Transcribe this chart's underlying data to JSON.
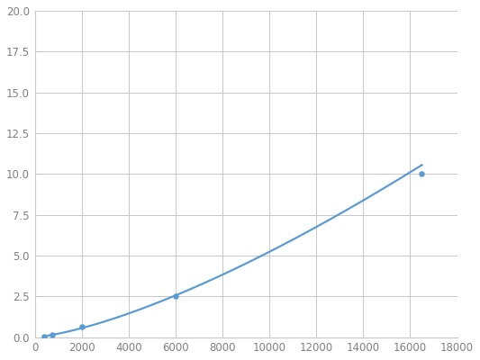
{
  "x_data": [
    400,
    750,
    2000,
    6000,
    16500
  ],
  "y_data": [
    0.05,
    0.15,
    0.62,
    2.5,
    10.0
  ],
  "line_color": "#5b9bd5",
  "marker_color": "#5b9bd5",
  "xlim": [
    0,
    18000
  ],
  "ylim": [
    0,
    20
  ],
  "xticks": [
    0,
    2000,
    4000,
    6000,
    8000,
    10000,
    12000,
    14000,
    16000,
    18000
  ],
  "yticks": [
    0.0,
    2.5,
    5.0,
    7.5,
    10.0,
    12.5,
    15.0,
    17.5,
    20.0
  ],
  "grid_color": "#c8c8c8",
  "bg_color": "#ffffff",
  "linewidth": 1.6,
  "marker_size": 22,
  "tick_labelsize": 8.5,
  "tick_labelcolor": "#808080"
}
